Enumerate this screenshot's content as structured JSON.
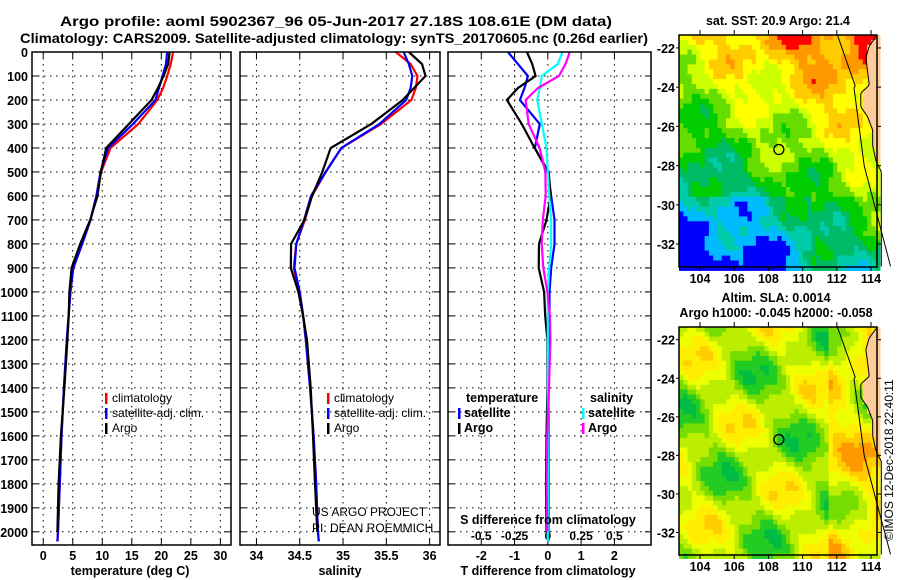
{
  "title": {
    "line1": "Argo profile: aoml 5902367_96 05-Jun-2017 27.18S 108.61E (DM data)",
    "line2": "Climatology: CARS2009. Satellite-adjusted climatology: synTS_20170605.nc (0.26d earlier)"
  },
  "credits": {
    "project": "US ARGO PROJECT",
    "pi": "PI: DEAN ROEMMICH",
    "stamp": "©IMOS 12-Dec-2018 22:40:11"
  },
  "chart_data": [
    {
      "id": "temperature",
      "type": "line",
      "xlabel": "temperature (deg C)",
      "ylabel": "",
      "xlim": [
        -1.9,
        31.8
      ],
      "ylim": [
        0,
        2055
      ],
      "xticks": [
        "0",
        "5",
        "10",
        "15",
        "20",
        "25",
        "30"
      ],
      "xtick_values": [
        0,
        5,
        10,
        15,
        20,
        25,
        30
      ],
      "yticks": [
        "0",
        "100",
        "200",
        "300",
        "400",
        "500",
        "600",
        "700",
        "800",
        "900",
        "1000",
        "1100",
        "1200",
        "1300",
        "1400",
        "1500",
        "1600",
        "1700",
        "1800",
        "1900",
        "2000"
      ],
      "grid": true,
      "legend": [
        "climatology",
        "satellite-adj. clim.",
        "Argo"
      ],
      "depth": [
        0,
        50,
        100,
        150,
        200,
        300,
        400,
        500,
        600,
        700,
        800,
        900,
        1000,
        1100,
        1200,
        1400,
        1600,
        1800,
        2000,
        2040
      ],
      "series": [
        {
          "name": "climatology",
          "color": "#ff0000",
          "values": [
            22.0,
            21.6,
            21.0,
            20.3,
            19.3,
            16.1,
            11.4,
            9.8,
            9.0,
            8.0,
            6.6,
            5.1,
            4.6,
            4.3,
            4.0,
            3.5,
            3.1,
            2.8,
            2.5,
            2.4
          ]
        },
        {
          "name": "satellite-adj. clim.",
          "color": "#0000ff",
          "values": [
            21.0,
            20.8,
            20.2,
            19.6,
            19.0,
            15.2,
            11.0,
            9.7,
            9.0,
            8.0,
            6.6,
            5.1,
            4.6,
            4.3,
            4.0,
            3.5,
            3.1,
            2.8,
            2.5,
            2.4
          ]
        },
        {
          "name": "Argo",
          "color": "#000000",
          "values": [
            21.4,
            21.0,
            20.2,
            19.4,
            18.5,
            14.7,
            10.7,
            9.6,
            9.0,
            7.9,
            6.4,
            5.0,
            4.5,
            4.2,
            3.9,
            3.5,
            3.1,
            2.8,
            2.5,
            null
          ]
        }
      ]
    },
    {
      "id": "salinity",
      "type": "line",
      "xlabel": "salinity",
      "xlim": [
        33.81,
        36.12
      ],
      "ylim": [
        0,
        2055
      ],
      "xticks": [
        "34",
        "34.5",
        "35",
        "35.5",
        "36"
      ],
      "xtick_values": [
        34,
        34.5,
        35,
        35.5,
        36
      ],
      "grid": true,
      "legend": [
        "climatology",
        "satellite-adj. clim.",
        "Argo"
      ],
      "depth": [
        0,
        50,
        100,
        150,
        200,
        300,
        400,
        500,
        600,
        700,
        800,
        900,
        1000,
        1100,
        1200,
        1400,
        1600,
        1800,
        2000,
        2040
      ],
      "series": [
        {
          "name": "climatology",
          "color": "#ff0000",
          "values": [
            35.61,
            35.78,
            35.86,
            35.84,
            35.79,
            35.44,
            34.98,
            34.8,
            34.64,
            34.56,
            34.46,
            34.43,
            34.5,
            34.54,
            34.57,
            34.62,
            34.66,
            34.69,
            34.71,
            34.72
          ]
        },
        {
          "name": "satellite-adj. clim.",
          "color": "#0000ff",
          "values": [
            35.7,
            35.76,
            35.8,
            35.78,
            35.73,
            35.42,
            34.98,
            34.8,
            34.63,
            34.55,
            34.46,
            34.44,
            34.5,
            34.54,
            34.57,
            34.62,
            34.66,
            34.69,
            34.71,
            34.72
          ]
        },
        {
          "name": "Argo",
          "color": "#000000",
          "values": [
            35.76,
            35.9,
            35.94,
            35.82,
            35.7,
            35.34,
            34.86,
            34.75,
            34.63,
            34.55,
            34.41,
            34.41,
            34.49,
            34.53,
            34.57,
            34.62,
            34.66,
            34.69,
            34.71,
            null
          ]
        }
      ]
    },
    {
      "id": "difference",
      "type": "line",
      "xlabel": "T difference from climatology",
      "x2label": "S difference from climatology",
      "xlim": [
        -3.0,
        3.1
      ],
      "ylim": [
        0,
        2055
      ],
      "xticks": [
        "-2",
        "-1",
        "0",
        "1",
        "2"
      ],
      "xtick_values": [
        -2,
        -1,
        0,
        1,
        2
      ],
      "x2ticks": [
        "-0.5",
        "-0.25",
        "0",
        "0.25",
        "0.5"
      ],
      "x2tick_values": [
        -0.5,
        -0.25,
        0,
        0.25,
        0.5
      ],
      "s_to_t_scale": 4,
      "grid": true,
      "legend_temperature": {
        "title": "temperature",
        "items": [
          "satellite",
          "Argo"
        ]
      },
      "legend_salinity": {
        "title": "salinity",
        "items": [
          "satellite",
          "Argo"
        ]
      },
      "depth": [
        0,
        50,
        100,
        150,
        200,
        300,
        400,
        500,
        600,
        700,
        800,
        900,
        1000,
        1100,
        1200,
        1400,
        1600,
        1800,
        2000,
        2040
      ],
      "series": [
        {
          "name": "temperature satellite",
          "var": "T",
          "color": "#0000ff",
          "values": [
            -1.2,
            -0.9,
            -0.6,
            -0.7,
            -0.84,
            -0.24,
            -0.39,
            0,
            0.1,
            0.2,
            0.2,
            0.1,
            0.05,
            0.05,
            0.03,
            0.02,
            0.02,
            0.02,
            0.02,
            0.02
          ]
        },
        {
          "name": "temperature Argo",
          "var": "T",
          "color": "#000000",
          "values": [
            -0.63,
            -0.5,
            -0.4,
            -0.9,
            -1.2,
            -0.75,
            -0.39,
            0,
            0.05,
            -0.05,
            -0.24,
            -0.24,
            -0.1,
            -0.1,
            -0.05,
            -0.03,
            -0.02,
            -0.02,
            -0.02,
            null
          ]
        },
        {
          "name": "salinity satellite",
          "var": "S",
          "color": "#00ffff",
          "values": [
            0.11,
            0.075,
            -0.045,
            -0.06,
            -0.08,
            -0.045,
            -0.01,
            0,
            0.01,
            0.025,
            0.025,
            0.01,
            0,
            0,
            0,
            0,
            0,
            0,
            0,
            0
          ]
        },
        {
          "name": "salinity Argo",
          "var": "S",
          "color": "#ff00ff",
          "values": [
            0.165,
            0.125,
            0.075,
            -0.075,
            -0.16,
            -0.135,
            -0.06,
            -0.025,
            -0.025,
            -0.04,
            -0.04,
            -0.025,
            0,
            0.01,
            0.01,
            0.005,
            0,
            0,
            0,
            null
          ]
        }
      ]
    },
    {
      "id": "sst_map",
      "type": "heatmap",
      "title": "sat. SST: 20.9 Argo: 21.4",
      "lon_range": [
        102.77,
        114.35
      ],
      "lat_range": [
        -21.34,
        -33.17
      ],
      "xticks": [
        "104",
        "106",
        "108",
        "110",
        "112",
        "114"
      ],
      "xtick_values": [
        104,
        106,
        108,
        110,
        112,
        114
      ],
      "yticks": [
        "-22",
        "-24",
        "-26",
        "-28",
        "-30",
        "-32"
      ],
      "ytick_values": [
        -22,
        -24,
        -26,
        -28,
        -30,
        -32
      ],
      "argo_position": {
        "lon": 108.61,
        "lat": -27.18
      },
      "palette": [
        "#0000ff",
        "#00bbff",
        "#00ccaa",
        "#00bb66",
        "#00cc00",
        "#66dd00",
        "#ccff00",
        "#ffff00",
        "#ffcc00",
        "#ff9900",
        "#ff0000"
      ],
      "land_color": "#ffcc99"
    },
    {
      "id": "sla_map",
      "type": "heatmap",
      "title1": "Altim. SLA: 0.0014",
      "title2": "Argo h1000: -0.045 h2000: -0.058",
      "lon_range": [
        102.77,
        114.35
      ],
      "lat_range": [
        -21.34,
        -33.17
      ],
      "xticks": [
        "104",
        "106",
        "108",
        "110",
        "112",
        "114"
      ],
      "xtick_values": [
        104,
        106,
        108,
        110,
        112,
        114
      ],
      "yticks": [
        "-22",
        "-24",
        "-26",
        "-28",
        "-30",
        "-32"
      ],
      "ytick_values": [
        -22,
        -24,
        -26,
        -28,
        -30,
        -32
      ],
      "argo_position": {
        "lon": 108.61,
        "lat": -27.18
      },
      "palette": [
        "#33bbaa",
        "#00bb44",
        "#22cc22",
        "#77dd00",
        "#bbee00",
        "#eeff00",
        "#ffee00",
        "#ffcc00",
        "#ff9900"
      ],
      "land_color": "#ffcc99"
    }
  ]
}
